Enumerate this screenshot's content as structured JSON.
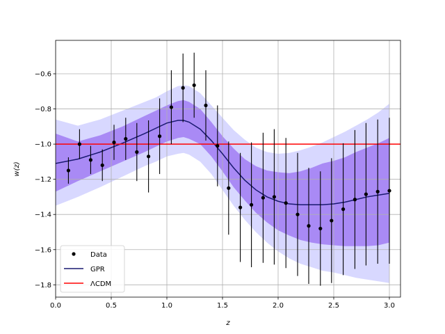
{
  "chart_data": {
    "type": "line",
    "title": "",
    "xlabel": "z",
    "ylabel": "w(z)",
    "xlim": [
      0.0,
      3.1
    ],
    "ylim": [
      -1.87,
      -0.41
    ],
    "xticks": [
      0.0,
      0.5,
      1.0,
      1.5,
      2.0,
      2.5,
      3.0
    ],
    "xtick_labels": [
      "0.0",
      "0.5",
      "1.0",
      "1.5",
      "2.0",
      "2.5",
      "3.0"
    ],
    "yticks": [
      -1.8,
      -1.6,
      -1.4,
      -1.2,
      -1.0,
      -0.8,
      -0.6
    ],
    "ytick_labels": [
      "−1.8",
      "−1.6",
      "−1.4",
      "−1.2",
      "−1.0",
      "−0.8",
      "−0.6"
    ],
    "grid": true,
    "legend": {
      "position": "lower-left",
      "entries": [
        "Data",
        "GPR",
        "ΛCDM"
      ]
    },
    "colors": {
      "data": "#000000",
      "gpr": "#191970",
      "lcdm": "#ff0000",
      "band_1sigma": "#a98af5",
      "band_2sigma": "#d8d8ff",
      "grid": "#b0b0b0"
    },
    "series": [
      {
        "name": "Data",
        "kind": "errorbar",
        "x": [
          0.115,
          0.215,
          0.315,
          0.42,
          0.525,
          0.63,
          0.73,
          0.835,
          0.935,
          1.04,
          1.145,
          1.245,
          1.35,
          1.455,
          1.555,
          1.66,
          1.76,
          1.865,
          1.965,
          2.07,
          2.175,
          2.275,
          2.38,
          2.48,
          2.585,
          2.69,
          2.79,
          2.895,
          3.0
        ],
        "y": [
          -1.15,
          -1.0,
          -1.09,
          -1.12,
          -0.99,
          -0.97,
          -1.045,
          -1.07,
          -0.955,
          -0.79,
          -0.68,
          -0.665,
          -0.78,
          -1.01,
          -1.25,
          -1.36,
          -1.345,
          -1.305,
          -1.3,
          -1.335,
          -1.4,
          -1.465,
          -1.48,
          -1.435,
          -1.37,
          -1.315,
          -1.285,
          -1.27,
          -1.265
        ],
        "yerr": [
          0.075,
          0.085,
          0.08,
          0.09,
          0.1,
          0.12,
          0.165,
          0.205,
          0.215,
          0.21,
          0.195,
          0.185,
          0.2,
          0.23,
          0.265,
          0.31,
          0.355,
          0.37,
          0.385,
          0.37,
          0.35,
          0.33,
          0.325,
          0.355,
          0.375,
          0.395,
          0.405,
          0.41,
          0.415
        ]
      },
      {
        "name": "GPR",
        "kind": "line",
        "x": [
          0.0,
          0.2,
          0.4,
          0.6,
          0.8,
          0.9,
          1.0,
          1.1,
          1.15,
          1.2,
          1.3,
          1.4,
          1.5,
          1.6,
          1.7,
          1.8,
          1.9,
          2.0,
          2.1,
          2.2,
          2.3,
          2.4,
          2.5,
          2.6,
          2.7,
          2.8,
          2.9,
          3.0
        ],
        "y": [
          -1.11,
          -1.085,
          -1.045,
          -0.995,
          -0.94,
          -0.91,
          -0.88,
          -0.865,
          -0.865,
          -0.875,
          -0.915,
          -0.98,
          -1.055,
          -1.135,
          -1.205,
          -1.26,
          -1.3,
          -1.325,
          -1.34,
          -1.345,
          -1.345,
          -1.345,
          -1.34,
          -1.33,
          -1.315,
          -1.3,
          -1.29,
          -1.28
        ]
      },
      {
        "name": "ΛCDM",
        "kind": "hline",
        "y": -1.0
      }
    ],
    "bands": [
      {
        "level": "2sigma",
        "x": [
          0.0,
          0.2,
          0.4,
          0.6,
          0.8,
          0.9,
          1.0,
          1.1,
          1.15,
          1.2,
          1.3,
          1.4,
          1.5,
          1.6,
          1.7,
          1.8,
          1.9,
          2.0,
          2.1,
          2.2,
          2.3,
          2.4,
          2.5,
          2.6,
          2.7,
          2.8,
          2.9,
          3.0
        ],
        "lower": [
          -1.35,
          -1.3,
          -1.245,
          -1.185,
          -1.125,
          -1.1,
          -1.07,
          -1.055,
          -1.05,
          -1.06,
          -1.1,
          -1.17,
          -1.26,
          -1.35,
          -1.43,
          -1.5,
          -1.56,
          -1.61,
          -1.65,
          -1.68,
          -1.7,
          -1.72,
          -1.73,
          -1.745,
          -1.76,
          -1.77,
          -1.78,
          -1.79
        ],
        "upper": [
          -0.86,
          -0.895,
          -0.86,
          -0.81,
          -0.76,
          -0.735,
          -0.7,
          -0.67,
          -0.665,
          -0.67,
          -0.71,
          -0.78,
          -0.85,
          -0.92,
          -0.975,
          -1.02,
          -1.045,
          -1.055,
          -1.05,
          -1.035,
          -1.015,
          -0.99,
          -0.96,
          -0.93,
          -0.895,
          -0.86,
          -0.82,
          -0.77
        ]
      },
      {
        "level": "1sigma",
        "x": [
          0.0,
          0.2,
          0.4,
          0.6,
          0.8,
          0.9,
          1.0,
          1.1,
          1.15,
          1.2,
          1.3,
          1.4,
          1.5,
          1.6,
          1.7,
          1.8,
          1.9,
          2.0,
          2.1,
          2.2,
          2.3,
          2.4,
          2.5,
          2.6,
          2.7,
          2.8,
          2.9,
          3.0
        ],
        "lower": [
          -1.27,
          -1.21,
          -1.155,
          -1.1,
          -1.045,
          -1.015,
          -0.985,
          -0.965,
          -0.96,
          -0.97,
          -1.0,
          -1.07,
          -1.155,
          -1.245,
          -1.32,
          -1.39,
          -1.445,
          -1.49,
          -1.52,
          -1.545,
          -1.56,
          -1.57,
          -1.575,
          -1.58,
          -1.58,
          -1.58,
          -1.575,
          -1.56
        ],
        "upper": [
          -0.94,
          -0.985,
          -0.95,
          -0.9,
          -0.84,
          -0.81,
          -0.78,
          -0.755,
          -0.75,
          -0.76,
          -0.8,
          -0.875,
          -0.955,
          -1.025,
          -1.085,
          -1.125,
          -1.15,
          -1.16,
          -1.165,
          -1.155,
          -1.135,
          -1.11,
          -1.095,
          -1.075,
          -1.045,
          -1.02,
          -0.995,
          -0.965
        ]
      }
    ]
  }
}
